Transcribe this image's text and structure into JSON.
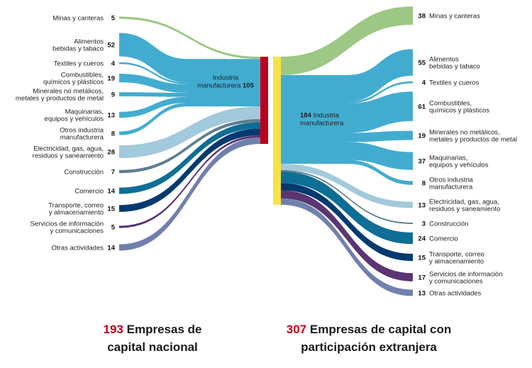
{
  "colors": {
    "minas": "#9dc784",
    "manufactura": "#42acd0",
    "electricidad": "#a2c9dc",
    "construccion": "#5f7f8f",
    "comercio": "#0e6e96",
    "transporte": "#013a70",
    "servicios": "#5a3573",
    "otras": "#7080ad",
    "nacional_bar": "#c0001a",
    "extranjera_bar": "#f8e24a"
  },
  "nacional": {
    "total": "193",
    "title_line1": "Empresas de",
    "title_line2": "capital nacional",
    "manufactura_label_line1": "Industria",
    "manufactura_label_line2": "manufacturera",
    "manufactura_total": "105",
    "flows": [
      {
        "key": "minas",
        "group": "minas",
        "lines": [
          "Minas y canteras"
        ],
        "value": 5
      },
      {
        "key": "alimentos",
        "group": "manufactura",
        "lines": [
          "Alimentos",
          "bebidas y tabaco"
        ],
        "value": 52
      },
      {
        "key": "textiles",
        "group": "manufactura",
        "lines": [
          "Textiles y cueros"
        ],
        "value": 4
      },
      {
        "key": "combustibles",
        "group": "manufactura",
        "lines": [
          "Combustibles,",
          "químicos y plásticos"
        ],
        "value": 19
      },
      {
        "key": "minerales",
        "group": "manufactura",
        "lines": [
          "Minerales no metálicos,",
          "metales y productos de metal"
        ],
        "value": 9
      },
      {
        "key": "maquinarias",
        "group": "manufactura",
        "lines": [
          "Maquinarias,",
          "equipos y vehículos"
        ],
        "value": 13
      },
      {
        "key": "otros-ind",
        "group": "manufactura",
        "lines": [
          "Otros industria",
          "manufacturera"
        ],
        "value": 8
      },
      {
        "key": "electricidad",
        "group": "electricidad",
        "lines": [
          "Electricidad, gas, agua,",
          "residuos y saneamiento"
        ],
        "value": 28
      },
      {
        "key": "construccion",
        "group": "construccion",
        "lines": [
          "Construcción"
        ],
        "value": 7
      },
      {
        "key": "comercio",
        "group": "comercio",
        "lines": [
          "Comercio"
        ],
        "value": 14
      },
      {
        "key": "transporte",
        "group": "transporte",
        "lines": [
          "Transporte, correo",
          "y almacenamiento"
        ],
        "value": 15
      },
      {
        "key": "servicios",
        "group": "servicios",
        "lines": [
          "Servicios de información",
          "y comunicaciones"
        ],
        "value": 5
      },
      {
        "key": "otras",
        "group": "otras",
        "lines": [
          "Otras actividades"
        ],
        "value": 14
      }
    ]
  },
  "extranjera": {
    "total": "307",
    "title_line1": "Empresas de capital con",
    "title_line2": "participación extranjera",
    "manufactura_label_line1": "Industria",
    "manufactura_label_line2": "manufacturera",
    "manufactura_total": "184",
    "flows": [
      {
        "key": "minas",
        "group": "minas",
        "lines": [
          "Minas y canteras"
        ],
        "value": 38
      },
      {
        "key": "alimentos",
        "group": "manufactura",
        "lines": [
          "Alimentos",
          "bebidas y tabaco"
        ],
        "value": 55
      },
      {
        "key": "textiles",
        "group": "manufactura",
        "lines": [
          "Textiles y cueros"
        ],
        "value": 4
      },
      {
        "key": "combustibles",
        "group": "manufactura",
        "lines": [
          "Combustibles,",
          "químicos y plásticos"
        ],
        "value": 61
      },
      {
        "key": "minerales",
        "group": "manufactura",
        "lines": [
          "Minerales no metálicos,",
          "metales y productos de metal"
        ],
        "value": 19
      },
      {
        "key": "maquinarias",
        "group": "manufactura",
        "lines": [
          "Maquinarias,",
          "equipos y vehículos"
        ],
        "value": 37
      },
      {
        "key": "otros-ind",
        "group": "manufactura",
        "lines": [
          "Otros industria",
          "manufacturera"
        ],
        "value": 8
      },
      {
        "key": "electricidad",
        "group": "electricidad",
        "lines": [
          "Electricidad, gas, agua,",
          "residuos y saneamiento"
        ],
        "value": 13
      },
      {
        "key": "construccion",
        "group": "construccion",
        "lines": [
          "Construcción"
        ],
        "value": 3
      },
      {
        "key": "comercio",
        "group": "comercio",
        "lines": [
          "Comercio"
        ],
        "value": 24
      },
      {
        "key": "transporte",
        "group": "transporte",
        "lines": [
          "Transporte, correo",
          "y almacenamiento"
        ],
        "value": 15
      },
      {
        "key": "servicios",
        "group": "servicios",
        "lines": [
          "Servicios de información",
          "y comunicaciones"
        ],
        "value": 17
      },
      {
        "key": "otras",
        "group": "otras",
        "lines": [
          "Otras actividades"
        ],
        "value": 13
      }
    ]
  }
}
